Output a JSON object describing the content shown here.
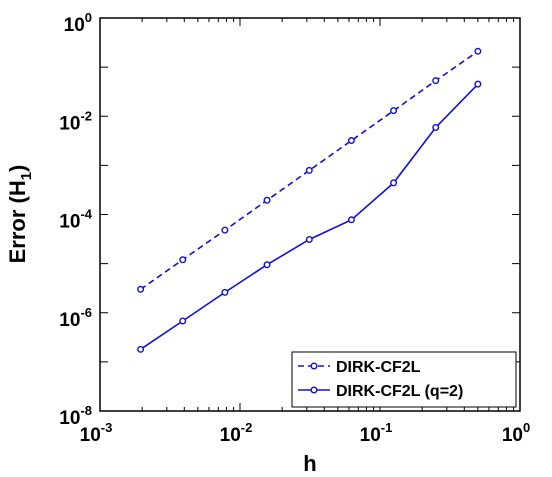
{
  "chart_data": {
    "type": "line",
    "xlabel": "h",
    "ylabel_main": "Error (H",
    "ylabel_sub": "1",
    "ylabel_close": ")",
    "x_scale": "log",
    "y_scale": "log",
    "xlim": [
      0.001,
      1
    ],
    "ylim": [
      1e-08,
      1
    ],
    "x_ticks": [
      {
        "value": 0.001,
        "base": "10",
        "exp": "-3"
      },
      {
        "value": 0.01,
        "base": "10",
        "exp": "-2"
      },
      {
        "value": 0.1,
        "base": "10",
        "exp": "-1"
      },
      {
        "value": 1,
        "base": "10",
        "exp": "0"
      }
    ],
    "y_ticks": [
      {
        "value": 1e-08,
        "base": "10",
        "exp": "-8"
      },
      {
        "value": 1e-06,
        "base": "10",
        "exp": "-6"
      },
      {
        "value": 0.0001,
        "base": "10",
        "exp": "-4"
      },
      {
        "value": 0.01,
        "base": "10",
        "exp": "-2"
      },
      {
        "value": 1,
        "base": "10",
        "exp": "0"
      }
    ],
    "grid": false,
    "legend_position": "bottom-right",
    "line_color": "#1010dd",
    "series": [
      {
        "name": "DIRK-CF2L",
        "style": "dashed",
        "x": [
          0.00195,
          0.0039,
          0.0078,
          0.0156,
          0.03125,
          0.0625,
          0.125,
          0.25,
          0.5
        ],
        "y": [
          3e-06,
          1.2e-05,
          4.8e-05,
          0.000195,
          0.00079,
          0.0032,
          0.013,
          0.053,
          0.21
        ]
      },
      {
        "name": "DIRK-CF2L (q=2)",
        "style": "solid",
        "x": [
          0.00195,
          0.0039,
          0.0078,
          0.0156,
          0.03125,
          0.0625,
          0.125,
          0.25,
          0.5
        ],
        "y": [
          1.8e-07,
          6.8e-07,
          2.6e-06,
          9.5e-06,
          3.1e-05,
          7.8e-05,
          0.00044,
          0.0059,
          0.045
        ]
      }
    ]
  }
}
